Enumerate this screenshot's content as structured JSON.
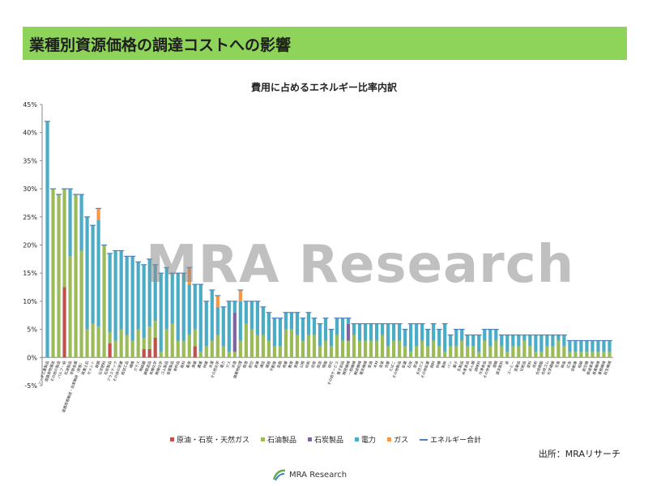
{
  "slide_title": "業種別資源価格の調達コストへの影響",
  "source_label": "出所：MRAリサーチ",
  "watermark_text": "MRA Research",
  "footer_logo_text": "MRA Research",
  "colors": {
    "header_bg": "#8ed35a",
    "crude": "#c0504d",
    "petroleum": "#9bbb59",
    "coal": "#8064a2",
    "electricity": "#4bacc6",
    "gas": "#f79646",
    "total": "#4f81bd"
  },
  "chart_data": {
    "type": "bar",
    "stacked": true,
    "title": "費用に占めるエネルギー比率内訳",
    "ylim": [
      -5,
      45
    ],
    "yticks": [
      "-5%",
      "0%",
      "5%",
      "10%",
      "15%",
      "20%",
      "25%",
      "30%",
      "35%",
      "40%",
      "45%"
    ],
    "grid": false,
    "legend_position": "bottom",
    "categories": [
      "ソーダ工業製品",
      "道路貨物運送",
      "その他の製造",
      "パルプ・紙",
      "石油製品",
      "非鉄金属",
      "道路旅客輸送・自家輸送（旅客）",
      "窯業土石",
      "セメント",
      "鉄鋼",
      "化学肥料",
      "石炭製品",
      "プラスチック",
      "その他の窯業",
      "紙加工品",
      "繊維",
      "ガラス",
      "陶磁器",
      "鋳鍛造品",
      "有機化学",
      "無機化学",
      "ゴム製品",
      "金属製品",
      "食料品",
      "飲料",
      "畜産",
      "漁業",
      "農業",
      "林業",
      "水運",
      "その他化学",
      "電力",
      "ガス",
      "水道",
      "廃棄物処理",
      "鉄道",
      "航空",
      "倉庫",
      "通信",
      "建設",
      "不動産",
      "金融",
      "商業",
      "教育",
      "医療",
      "公務",
      "印刷",
      "出版",
      "放送",
      "情報",
      "研究",
      "その他サービス",
      "電子部品",
      "精密機械",
      "一般機械",
      "輸送機械",
      "電気機械",
      "家具",
      "木材",
      "皮革",
      "衣服",
      "たばこ",
      "その他製品",
      "鉱業",
      "石炭",
      "原油",
      "天然ガス",
      "その他鉱業",
      "飼料",
      "砂糖",
      "製粉",
      "パン",
      "菓子",
      "乳製品",
      "水産食品",
      "めん類",
      "調味料",
      "冷凍食品",
      "その他食品",
      "酒類",
      "清涼飲料",
      "茶",
      "コーヒー",
      "医薬品",
      "化粧品",
      "塗料",
      "洗剤",
      "合成樹脂",
      "合成ゴム",
      "化学繊維",
      "写真",
      "映画",
      "広告",
      "自動車",
      "船舶",
      "航空機",
      "鉄道車両",
      "産業機械",
      "事務機械",
      "民生機械"
    ],
    "series": [
      {
        "name": "原油・石炭・天然ガス",
        "values": [
          0,
          0,
          0,
          12.5,
          0,
          0,
          0,
          0,
          0,
          0,
          0,
          2.5,
          0,
          0,
          0,
          0,
          0,
          1.5,
          1.5,
          3.5,
          0,
          0,
          0,
          0,
          0,
          0,
          2,
          0,
          0,
          0,
          0,
          0,
          0,
          0,
          0,
          0,
          0,
          0,
          0,
          0,
          0,
          0,
          0,
          0,
          0,
          0,
          0,
          0,
          0,
          0,
          0,
          0,
          0,
          0,
          0,
          0,
          0,
          0,
          0,
          0,
          0,
          0,
          0,
          0,
          0,
          0,
          0,
          0,
          0,
          0,
          0,
          0,
          0,
          0,
          0,
          0,
          0,
          0,
          0,
          0,
          0,
          0,
          0,
          0,
          0,
          0,
          0,
          0,
          0,
          0,
          0,
          0,
          0,
          0,
          0,
          0,
          0,
          0,
          0,
          0
        ]
      },
      {
        "name": "石油製品",
        "values": [
          0,
          30,
          29,
          17.5,
          18,
          29,
          19,
          5,
          6,
          5.5,
          20,
          2,
          3,
          5,
          4,
          3,
          5,
          2,
          4,
          3,
          1,
          5,
          6,
          3,
          3,
          4,
          3,
          1,
          2,
          3,
          4,
          2,
          1,
          1,
          3,
          6,
          5,
          4,
          4,
          3,
          2,
          2,
          5,
          5,
          4,
          3,
          4,
          4,
          2,
          3,
          2,
          4,
          3,
          3,
          4,
          3,
          3,
          3,
          3,
          4,
          2,
          3,
          3,
          2,
          1,
          2,
          3,
          2,
          3,
          2,
          1,
          2,
          2,
          3,
          2,
          2,
          1,
          3,
          2,
          3,
          2,
          1,
          2,
          2,
          3,
          2,
          1,
          1,
          2,
          2,
          3,
          2,
          1,
          1,
          1,
          1,
          1,
          1,
          1,
          1
        ]
      },
      {
        "name": "石炭製品",
        "values": [
          0,
          0,
          0,
          0,
          0,
          0,
          0,
          0,
          0,
          0,
          0,
          0,
          0,
          0,
          0,
          0,
          0,
          0,
          0,
          0,
          0,
          0,
          0,
          0,
          0,
          0,
          0,
          0,
          0,
          0,
          0,
          0,
          0,
          7,
          0,
          0,
          0,
          0,
          0,
          0,
          0,
          0,
          0,
          0,
          0,
          0,
          0,
          0,
          0,
          0,
          0,
          0,
          0,
          3,
          0,
          0,
          0,
          0,
          0,
          0,
          0,
          0,
          0,
          0,
          0,
          0,
          0,
          0,
          0,
          0,
          0,
          0,
          0,
          0,
          0,
          0,
          0,
          0,
          0,
          0,
          0,
          0,
          0,
          0,
          0,
          0,
          0,
          0,
          0,
          0,
          0,
          0,
          0,
          0,
          0,
          0,
          0,
          0,
          0,
          0
        ]
      },
      {
        "name": "電力",
        "values": [
          42,
          0,
          0,
          0,
          12,
          0,
          10,
          20,
          17.5,
          19,
          0,
          14,
          16,
          14,
          14,
          15,
          12,
          13,
          12,
          10,
          14,
          11,
          9,
          12,
          12,
          9,
          8,
          12,
          8,
          9,
          5,
          7,
          9,
          2,
          7,
          4,
          5,
          6,
          5,
          5,
          5,
          5,
          3,
          3,
          4,
          4,
          4,
          3,
          4,
          4,
          3,
          3,
          4,
          1,
          2,
          3,
          3,
          3,
          3,
          2,
          4,
          3,
          3,
          3,
          5,
          4,
          3,
          3,
          3,
          3,
          5,
          2,
          3,
          2,
          2,
          2,
          3,
          2,
          3,
          2,
          2,
          3,
          2,
          2,
          1,
          2,
          3,
          3,
          2,
          2,
          1,
          2,
          2,
          2,
          2,
          2,
          2,
          2,
          2,
          2
        ]
      },
      {
        "name": "ガス",
        "values": [
          0,
          0,
          0,
          0,
          0,
          0,
          0,
          0,
          0,
          2,
          0,
          0,
          0,
          0,
          0,
          0,
          0,
          0,
          0,
          0,
          0,
          0,
          0,
          0,
          0,
          3,
          0,
          0,
          0,
          0,
          2,
          0,
          0,
          0,
          2,
          0,
          0,
          0,
          0,
          0,
          0,
          0,
          0,
          0,
          0,
          0,
          0,
          0,
          0,
          0,
          0,
          0,
          0,
          0,
          0,
          0,
          0,
          0,
          0,
          0,
          0,
          0,
          0,
          0,
          0,
          0,
          0,
          0,
          0,
          0,
          0,
          0,
          0,
          0,
          0,
          0,
          0,
          0,
          0,
          0,
          0,
          0,
          0,
          0,
          0,
          0,
          0,
          0,
          0,
          0,
          0,
          0,
          0,
          0,
          0,
          0,
          0,
          0,
          0,
          0
        ]
      }
    ],
    "legend_entries": [
      "原油・石炭・天然ガス",
      "石油製品",
      "石炭製品",
      "電力",
      "ガス",
      "エネルギー合計"
    ]
  }
}
